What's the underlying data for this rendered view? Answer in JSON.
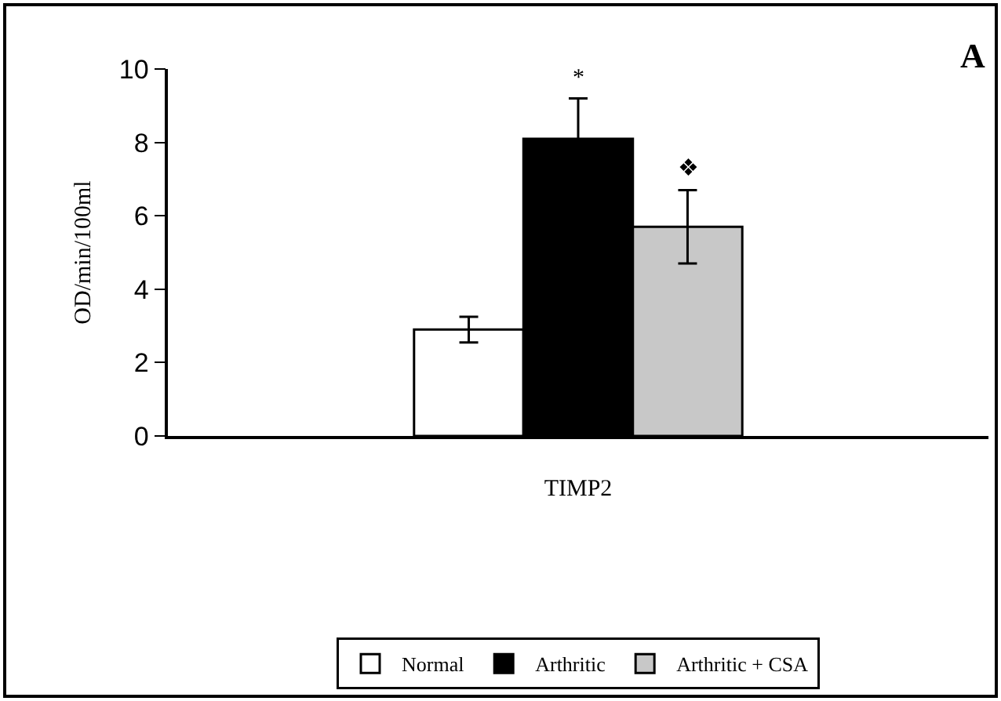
{
  "chart_data": {
    "type": "bar",
    "ylabel": "OD/min/100ml",
    "categories": [
      "TIMP2"
    ],
    "series": [
      {
        "name": "Normal",
        "color": "#ffffff",
        "values": [
          2.9
        ],
        "errors": [
          0.35
        ]
      },
      {
        "name": "Arthritic",
        "color": "#000000",
        "values": [
          8.1
        ],
        "errors": [
          1.1
        ]
      },
      {
        "name": "Arthritic + CSA",
        "color": "#c8c8c8",
        "values": [
          5.7
        ],
        "errors": [
          1.0
        ]
      }
    ],
    "ylim": [
      0,
      10
    ],
    "yticks": [
      0,
      2,
      4,
      6,
      8,
      10
    ],
    "grid": false,
    "legend": "bottom",
    "annotations": [
      "*",
      "❖",
      "A"
    ]
  }
}
